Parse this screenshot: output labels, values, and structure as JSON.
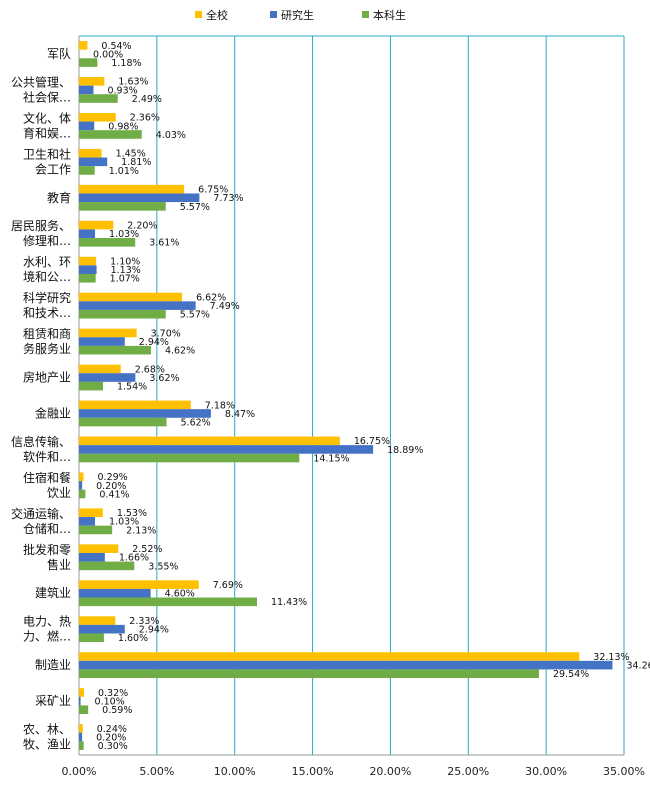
{
  "chart_data": {
    "type": "bar",
    "orientation": "horizontal",
    "legend_position": "top",
    "grid": true,
    "xlim": [
      0,
      35
    ],
    "x_ticks": [
      "0.00%",
      "5.00%",
      "10.00%",
      "15.00%",
      "20.00%",
      "25.00%",
      "30.00%",
      "35.00%"
    ],
    "x_tick_values": [
      0,
      5,
      10,
      15,
      20,
      25,
      30,
      35
    ],
    "categories": [
      [
        "军队"
      ],
      [
        "公共管理、",
        "社会保…"
      ],
      [
        "文化、体",
        "育和娱…"
      ],
      [
        "卫生和社",
        "会工作"
      ],
      [
        "教育"
      ],
      [
        "居民服务、",
        "修理和…"
      ],
      [
        "水利、环",
        "境和公…"
      ],
      [
        "科学研究",
        "和技术…"
      ],
      [
        "租赁和商",
        "务服务业"
      ],
      [
        "房地产业"
      ],
      [
        "金融业"
      ],
      [
        "信息传输、",
        "软件和…"
      ],
      [
        "住宿和餐",
        "饮业"
      ],
      [
        "交通运输、",
        "仓储和…"
      ],
      [
        "批发和零",
        "售业"
      ],
      [
        "建筑业"
      ],
      [
        "电力、热",
        "力、燃…"
      ],
      [
        "制造业"
      ],
      [
        "采矿业"
      ],
      [
        "农、林、",
        "牧、渔业"
      ]
    ],
    "series": [
      {
        "name": "全校",
        "color": "#FFC000",
        "values": [
          0.54,
          1.63,
          2.36,
          1.45,
          6.75,
          2.2,
          1.1,
          6.62,
          3.7,
          2.68,
          7.18,
          16.75,
          0.29,
          1.53,
          2.52,
          7.69,
          2.33,
          32.13,
          0.32,
          0.24
        ],
        "labels": [
          "0.54%",
          "1.63%",
          "2.36%",
          "1.45%",
          "6.75%",
          "2.20%",
          "1.10%",
          "6.62%",
          "3.70%",
          "2.68%",
          "7.18%",
          "16.75%",
          "0.29%",
          "1.53%",
          "2.52%",
          "7.69%",
          "2.33%",
          "32.13%",
          "0.32%",
          "0.24%"
        ]
      },
      {
        "name": "研究生",
        "color": "#4472C4",
        "values": [
          0.0,
          0.93,
          0.98,
          1.81,
          7.73,
          1.03,
          1.13,
          7.49,
          2.94,
          3.62,
          8.47,
          18.89,
          0.2,
          1.03,
          1.66,
          4.6,
          2.94,
          34.26,
          0.1,
          0.2
        ],
        "labels": [
          "0.00%",
          "0.93%",
          "0.98%",
          "1.81%",
          "7.73%",
          "1.03%",
          "1.13%",
          "7.49%",
          "2.94%",
          "3.62%",
          "8.47%",
          "18.89%",
          "0.20%",
          "1.03%",
          "1.66%",
          "4.60%",
          "2.94%",
          "34.26%",
          "0.10%",
          "0.20%"
        ]
      },
      {
        "name": "本科生",
        "color": "#70AD47",
        "values": [
          1.18,
          2.49,
          4.03,
          1.01,
          5.57,
          3.61,
          1.07,
          5.57,
          4.62,
          1.54,
          5.62,
          14.15,
          0.41,
          2.13,
          3.55,
          11.43,
          1.6,
          29.54,
          0.59,
          0.3
        ],
        "labels": [
          "1.18%",
          "2.49%",
          "4.03%",
          "1.01%",
          "5.57%",
          "3.61%",
          "1.07%",
          "5.57%",
          "4.62%",
          "1.54%",
          "5.62%",
          "14.15%",
          "0.41%",
          "2.13%",
          "3.55%",
          "11.43%",
          "1.60%",
          "29.54%",
          "0.59%",
          "0.30%"
        ]
      }
    ],
    "gridline_color": "#29A8C8",
    "axis_color": "#999999"
  }
}
